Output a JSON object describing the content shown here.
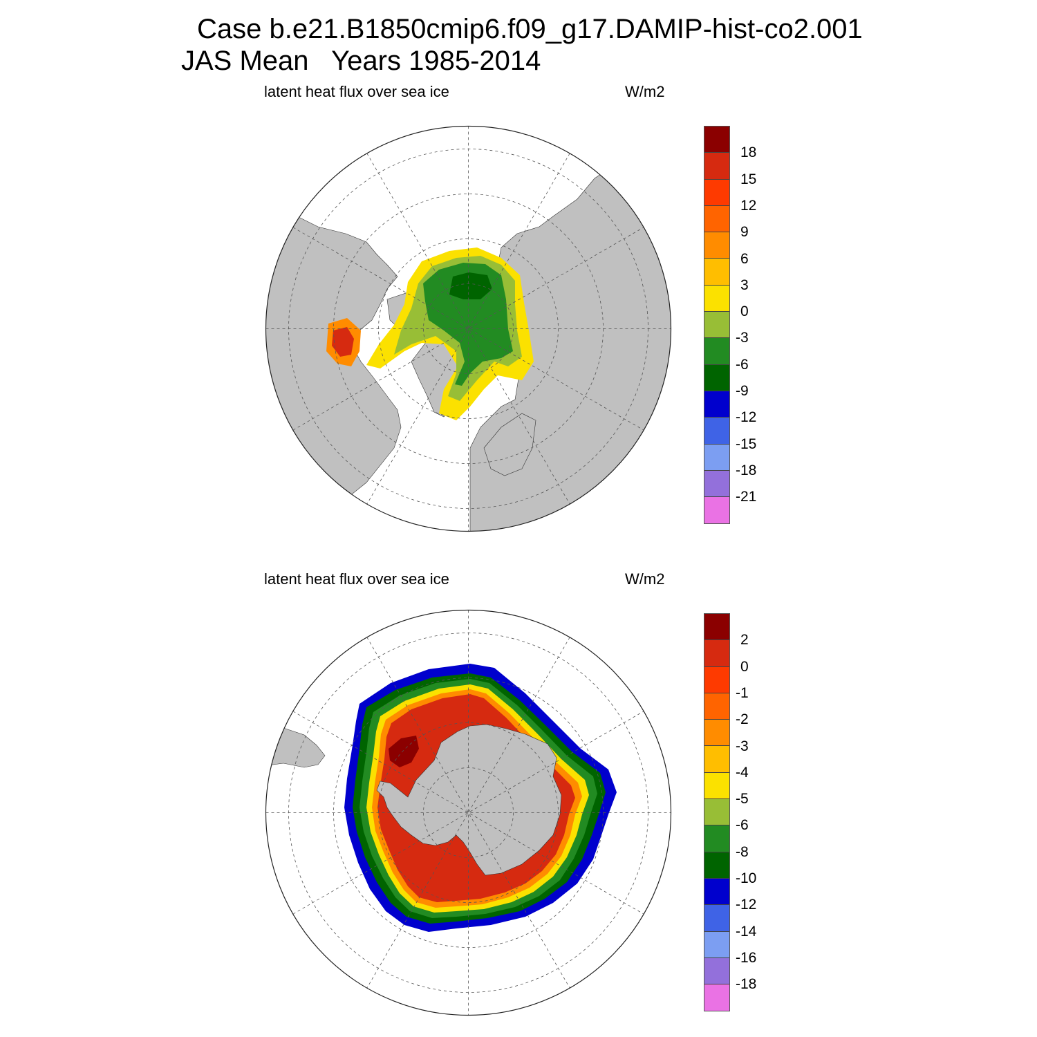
{
  "header": {
    "title_line1": "Case b.e21.B1850cmip6.f09_g17.DAMIP-hist-co2.001",
    "title_line2": "JAS Mean   Years 1985-2014"
  },
  "panels": [
    {
      "id": "north",
      "variable": "latent heat flux over sea ice",
      "units": "W/m2",
      "colorbar_labels": [
        "18",
        "15",
        "12",
        "9",
        "6",
        "3",
        "0",
        "-3",
        "-6",
        "-9",
        "-12",
        "-15",
        "-18",
        "-21"
      ],
      "colors": [
        "#8b0000",
        "#d62a10",
        "#fe3a00",
        "#ff6400",
        "#ff8c00",
        "#ffbe00",
        "#fbe100",
        "#98be36",
        "#228b22",
        "#006400",
        "#0000cd",
        "#3f63e6",
        "#7c9ef2",
        "#9370db",
        "#ea72e4"
      ]
    },
    {
      "id": "south",
      "variable": "latent heat flux over sea ice",
      "units": "W/m2",
      "colorbar_labels": [
        "2",
        "0",
        "-1",
        "-2",
        "-3",
        "-4",
        "-5",
        "-6",
        "-8",
        "-10",
        "-12",
        "-14",
        "-16",
        "-18"
      ],
      "colors": [
        "#8b0000",
        "#d62a10",
        "#fe3a00",
        "#ff6400",
        "#ff8c00",
        "#ffbe00",
        "#fbe100",
        "#98be36",
        "#228b22",
        "#006400",
        "#0000cd",
        "#3f63e6",
        "#7c9ef2",
        "#9370db",
        "#ea72e4"
      ]
    }
  ],
  "map_style": {
    "land_color": "#c0c0c0",
    "ocean_color": "#ffffff",
    "grid_color": "#555555"
  }
}
